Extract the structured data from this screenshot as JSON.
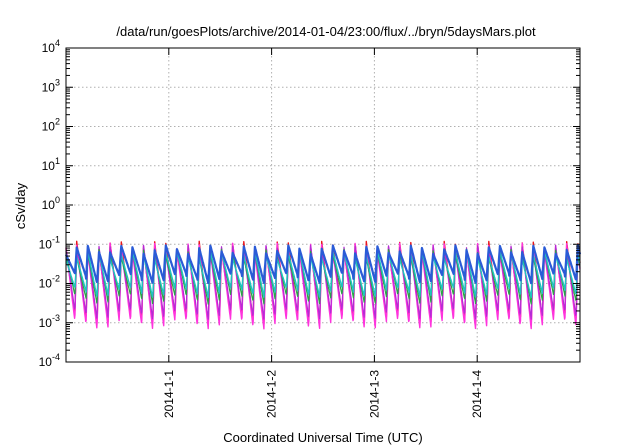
{
  "chart_data": {
    "type": "line",
    "title": "/data/run/goesPlots/archive/2014-01-04/23:00/flux/../bryn/5daysMars.plot",
    "xlabel": "Coordinated Universal Time (UTC)",
    "ylabel": "cSv/day",
    "yscale": "log",
    "ylim": [
      0.0001,
      10000
    ],
    "y_ticks": [
      {
        "value": 0.0001,
        "base": "10",
        "exp": "-4"
      },
      {
        "value": 0.001,
        "base": "10",
        "exp": "-3"
      },
      {
        "value": 0.01,
        "base": "10",
        "exp": "-2"
      },
      {
        "value": 0.1,
        "base": "10",
        "exp": "-1"
      },
      {
        "value": 1,
        "base": "10",
        "exp": "0"
      },
      {
        "value": 10,
        "base": "10",
        "exp": "1"
      },
      {
        "value": 100,
        "base": "10",
        "exp": "2"
      },
      {
        "value": 1000,
        "base": "10",
        "exp": "3"
      },
      {
        "value": 10000,
        "base": "10",
        "exp": "4"
      }
    ],
    "xlim": [
      "2013-12-31 00:00",
      "2014-01-05 00:00"
    ],
    "x_ticks": [
      "2014-1-1",
      "2014-1-2",
      "2014-1-3",
      "2014-1-4"
    ],
    "grid": true,
    "legend": "none",
    "pattern": {
      "cycle_hours": 2.6,
      "peak_hours_after_cycle_start": 0.45,
      "start_phase_hours": 0.55
    },
    "series": [
      {
        "color": "#e8181c",
        "peak": 0.095,
        "trough": 0.0012,
        "width": 1.4
      },
      {
        "color": "#ff33dd",
        "peak": 0.085,
        "trough": 0.0009,
        "width": 1.4
      },
      {
        "color": "#b52bd6",
        "peak": 0.075,
        "trough": 0.0016,
        "width": 1.2
      },
      {
        "color": "#28a745",
        "peak": 0.06,
        "trough": 0.004,
        "width": 1.2
      },
      {
        "color": "#20c3c3",
        "peak": 0.055,
        "trough": 0.006,
        "width": 1.4
      },
      {
        "color": "#2a5bd7",
        "peak": 0.075,
        "trough": 0.014,
        "width": 2.2
      }
    ]
  }
}
